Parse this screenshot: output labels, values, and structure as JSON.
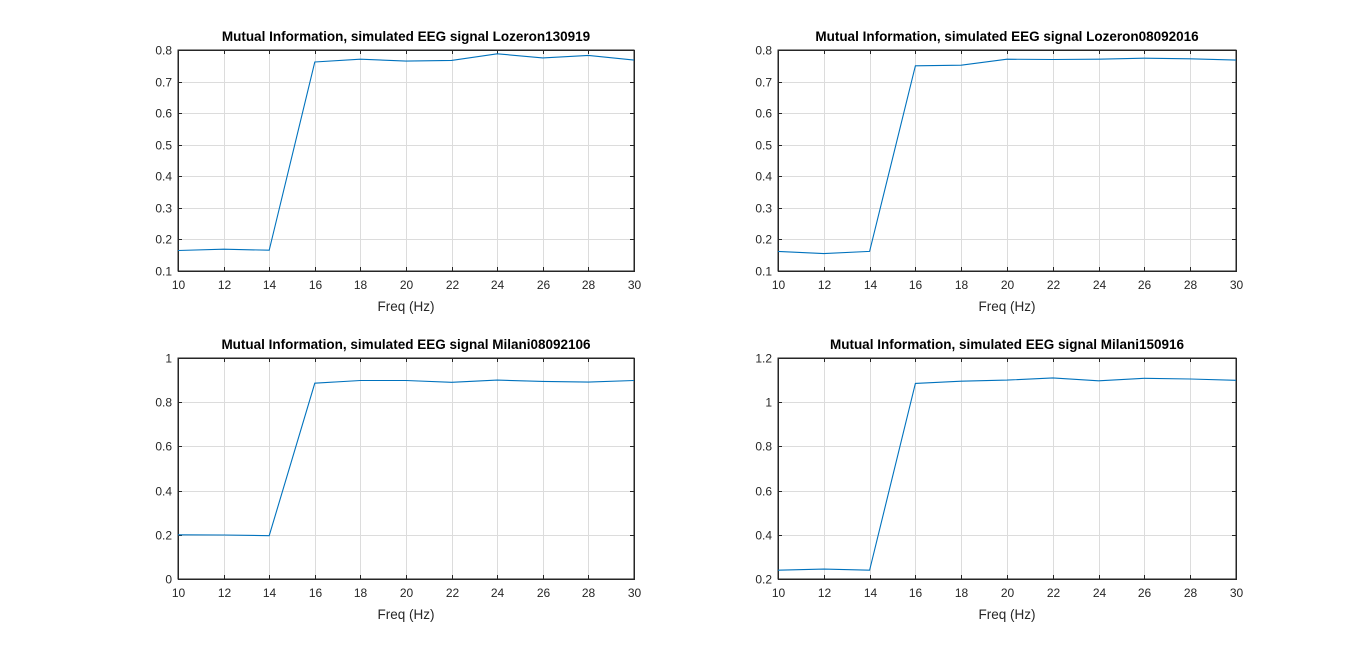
{
  "figure": {
    "background": "#ffffff",
    "line_color": "#0072bd",
    "grid_color": "#dcdcdc",
    "axis_color": "#262626"
  },
  "chart_data": [
    {
      "type": "line",
      "title": "Mutual Information, simulated EEG signal Lozeron130919",
      "xlabel": "Freq (Hz)",
      "ylabel": "",
      "grid": true,
      "xlim": [
        10,
        30
      ],
      "ylim": [
        0.1,
        0.8
      ],
      "xticks": [
        10,
        12,
        14,
        16,
        18,
        20,
        22,
        24,
        26,
        28,
        30
      ],
      "yticks": [
        0.1,
        0.2,
        0.3,
        0.4,
        0.5,
        0.6,
        0.7,
        0.8
      ],
      "xtick_labels": [
        "10",
        "12",
        "14",
        "16",
        "18",
        "20",
        "22",
        "24",
        "26",
        "28",
        "30"
      ],
      "ytick_labels": [
        "0.1",
        "0.2",
        "0.3",
        "0.4",
        "0.5",
        "0.6",
        "0.7",
        "0.8"
      ],
      "x": [
        10,
        12,
        14,
        16,
        18,
        20,
        22,
        24,
        26,
        28,
        30
      ],
      "series": [
        {
          "values": [
            0.165,
            0.169,
            0.166,
            0.762,
            0.771,
            0.765,
            0.767,
            0.788,
            0.775,
            0.783,
            0.768
          ]
        }
      ]
    },
    {
      "type": "line",
      "title": "Mutual Information, simulated EEG signal Lozeron08092016",
      "xlabel": "Freq (Hz)",
      "ylabel": "",
      "grid": true,
      "xlim": [
        10,
        30
      ],
      "ylim": [
        0.1,
        0.8
      ],
      "xticks": [
        10,
        12,
        14,
        16,
        18,
        20,
        22,
        24,
        26,
        28,
        30
      ],
      "yticks": [
        0.1,
        0.2,
        0.3,
        0.4,
        0.5,
        0.6,
        0.7,
        0.8
      ],
      "xtick_labels": [
        "10",
        "12",
        "14",
        "16",
        "18",
        "20",
        "22",
        "24",
        "26",
        "28",
        "30"
      ],
      "ytick_labels": [
        "0.1",
        "0.2",
        "0.3",
        "0.4",
        "0.5",
        "0.6",
        "0.7",
        "0.8"
      ],
      "x": [
        10,
        12,
        14,
        16,
        18,
        20,
        22,
        24,
        26,
        28,
        30
      ],
      "series": [
        {
          "values": [
            0.162,
            0.155,
            0.162,
            0.75,
            0.752,
            0.771,
            0.77,
            0.771,
            0.774,
            0.772,
            0.768
          ]
        }
      ]
    },
    {
      "type": "line",
      "title": "Mutual Information, simulated EEG signal Milani08092106",
      "xlabel": "Freq (Hz)",
      "ylabel": "",
      "grid": true,
      "xlim": [
        10,
        30
      ],
      "ylim": [
        0,
        1
      ],
      "xticks": [
        10,
        12,
        14,
        16,
        18,
        20,
        22,
        24,
        26,
        28,
        30
      ],
      "yticks": [
        0,
        0.2,
        0.4,
        0.6,
        0.8,
        1
      ],
      "xtick_labels": [
        "10",
        "12",
        "14",
        "16",
        "18",
        "20",
        "22",
        "24",
        "26",
        "28",
        "30"
      ],
      "ytick_labels": [
        "0",
        "0.2",
        "0.4",
        "0.6",
        "0.8",
        "1"
      ],
      "x": [
        10,
        12,
        14,
        16,
        18,
        20,
        22,
        24,
        26,
        28,
        30
      ],
      "series": [
        {
          "values": [
            0.2,
            0.199,
            0.196,
            0.886,
            0.898,
            0.898,
            0.89,
            0.9,
            0.894,
            0.891,
            0.898
          ]
        }
      ]
    },
    {
      "type": "line",
      "title": "Mutual Information, simulated EEG signal Milani150916",
      "xlabel": "Freq (Hz)",
      "ylabel": "",
      "grid": true,
      "xlim": [
        10,
        30
      ],
      "ylim": [
        0.2,
        1.2
      ],
      "xticks": [
        10,
        12,
        14,
        16,
        18,
        20,
        22,
        24,
        26,
        28,
        30
      ],
      "yticks": [
        0.2,
        0.4,
        0.6,
        0.8,
        1,
        1.2
      ],
      "xtick_labels": [
        "10",
        "12",
        "14",
        "16",
        "18",
        "20",
        "22",
        "24",
        "26",
        "28",
        "30"
      ],
      "ytick_labels": [
        "0.2",
        "0.4",
        "0.6",
        "0.8",
        "1",
        "1.2"
      ],
      "x": [
        10,
        12,
        14,
        16,
        18,
        20,
        22,
        24,
        26,
        28,
        30
      ],
      "series": [
        {
          "values": [
            0.24,
            0.245,
            0.24,
            1.085,
            1.095,
            1.1,
            1.11,
            1.097,
            1.108,
            1.105,
            1.099
          ]
        }
      ]
    }
  ]
}
